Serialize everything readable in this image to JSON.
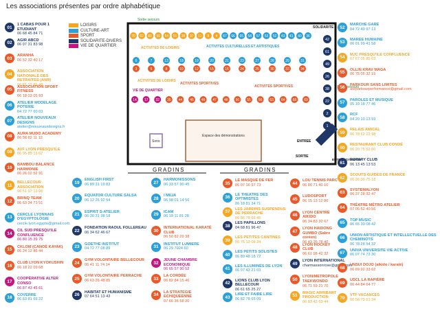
{
  "title": "Les associations présentes par ordre alphabétique",
  "legend": [
    {
      "label": "LOISIRS",
      "color": "#f5a623"
    },
    {
      "label": "CULTURE-ART",
      "color": "#2a9fd8"
    },
    {
      "label": "SPORT",
      "color": "#e85a2a"
    },
    {
      "label": "SOLIDARITE-DIVERS",
      "color": "#1f3767"
    },
    {
      "label": "VIE DE QUARTIER",
      "color": "#c2177e"
    }
  ],
  "entries": [
    {
      "num": "01",
      "name": "1 CABAS POUR 1 ETUDIANT",
      "info": "06 68 45 84 71",
      "color": "#1f3767"
    },
    {
      "num": "02",
      "name": "AGIR ABCD",
      "info": "06 07 31 83 98",
      "color": "#1f3767"
    },
    {
      "num": "03",
      "name": "ARANHA",
      "info": "06 52 32 40 17",
      "color": "#e85a2a"
    },
    {
      "num": "04",
      "name": "ASSOCIATION NATIONALE DES RETRAITES (ANR)",
      "info": "06 81 12 85 48",
      "color": "#f5a623"
    },
    {
      "num": "05",
      "name": "ASSOCIATION SPORT FITNESS",
      "info": "06 18 03 05 93",
      "color": "#e85a2a"
    },
    {
      "num": "06",
      "name": "ATELIER MODELAGE POTERIE",
      "info": "04 72 77 60 03",
      "color": "#2a9fd8"
    },
    {
      "num": "07",
      "name": "ATELIER NOUVEAUX DESIGNS",
      "info": "atelier@nouveauxdesigns.fr",
      "color": "#2a9fd8"
    },
    {
      "num": "08",
      "name": "AURA MUDO ACADEMY",
      "info": "06 58 82 11 12",
      "color": "#e85a2a"
    },
    {
      "num": "09",
      "name": "AVF LYON PRESQU'ILE",
      "info": "06 95 85 19 67",
      "color": "#f5a623"
    },
    {
      "num": "10",
      "name": "BAMBOU BALANCE HARMONIE",
      "info": "06 26 02 52 91",
      "color": "#e85a2a"
    },
    {
      "num": "11",
      "name": "BELLECOUR ASSOCIATION",
      "info": "06 51 97 13 06",
      "color": "#f5a623"
    },
    {
      "num": "12",
      "name": "BRINQ TEAM",
      "info": "06 63 34 73 51",
      "color": "#e85a2a"
    },
    {
      "num": "13",
      "name": "CERCLE LYONNAIS D'EGYPTOLOGIE",
      "info": "cercle.lyon.egypto@gmail.com",
      "color": "#2a9fd8"
    },
    {
      "num": "14",
      "name": "CIL SUD PRESQU'ILE CONFLUENCE",
      "info": "06 80 15 39 75",
      "color": "#c2177e"
    },
    {
      "num": "15",
      "name": "CKLOM (CANOË KAYAK)",
      "info": "06 24 12 86 44",
      "color": "#e85a2a"
    },
    {
      "num": "16",
      "name": "CLUB LYON KYOKUSHIN",
      "info": "06 18 22 09 68",
      "color": "#e85a2a"
    },
    {
      "num": "17",
      "name": "COOPÉRATIVE ALTER CONSO",
      "info": "06 87 43 45 61",
      "color": "#c2177e"
    },
    {
      "num": "18",
      "name": "COVERRE",
      "info": "06 63 81 66 22",
      "color": "#2a9fd8"
    },
    {
      "num": "19",
      "name": "ENGLISH FIRST",
      "info": "06 89 31 19 83",
      "color": "#2a9fd8"
    },
    {
      "num": "20",
      "name": "EQUATOR CULTURE SALSA",
      "info": "06 12 26 92 54",
      "color": "#2a9fd8"
    },
    {
      "num": "21",
      "name": "ESPRIT S-ATELIER",
      "info": "06 20 31 38 18",
      "color": "#2a9fd8"
    },
    {
      "num": "22",
      "name": "FONDATION RAOUL FOLLEREAU",
      "info": "06 34 62 46 67",
      "color": "#1f3767"
    },
    {
      "num": "23",
      "name": "GOETHE INSTITUT",
      "info": "04 72 77 08 89",
      "color": "#2a9fd8"
    },
    {
      "num": "24",
      "name": "GYM VOLONTAIRE BELLECOUR",
      "info": "06 41 11 74 14",
      "color": "#e85a2a"
    },
    {
      "num": "25",
      "name": "GYM VOLONTAIRE PERRACHE",
      "info": "06 63 26 48 85",
      "color": "#e85a2a"
    },
    {
      "num": "26",
      "name": "HABITAT ET HUMANISME",
      "info": "07 64 51 13 43",
      "color": "#1f3767"
    },
    {
      "num": "27",
      "name": "HARMONISSONS",
      "info": "06 33 57 90 45",
      "color": "#2a9fd8"
    },
    {
      "num": "28",
      "name": "I MILIA",
      "info": "06 98 01 14 56",
      "color": "#2a9fd8"
    },
    {
      "num": "29",
      "name": "ICAM",
      "info": "06 18 11 81 28",
      "color": "#2a9fd8"
    },
    {
      "num": "30",
      "name": "INTERNATIONAL KARATÉ CLUB",
      "info": "06 50 82 29 38",
      "color": "#e85a2a"
    },
    {
      "num": "31",
      "name": "INSTITUT LUMIERE",
      "info": "06 29 7024 60",
      "color": "#2a9fd8"
    },
    {
      "num": "32",
      "name": "JEUNE CHAMBRE ECONOMIQUE",
      "info": "06 65 57 90 52",
      "color": "#c2177e"
    },
    {
      "num": "33",
      "name": "LA CORDÉE",
      "info": "06 82 84 15 46",
      "color": "#e85a2a"
    },
    {
      "num": "34",
      "name": "LA STRATEGIE ECHIQUEENNE",
      "info": "07 66 36 58 20",
      "color": "#e85a2a"
    },
    {
      "num": "35",
      "name": "LE MASQUE DE FER",
      "info": "06 07 16 97 73",
      "color": "#e85a2a"
    },
    {
      "num": "36",
      "name": "LE THEATRE DES OPTIMISTES",
      "info": "06 18 81 34 71",
      "color": "#2a9fd8"
    },
    {
      "num": "37",
      "name": "LES JARDINS SUSPENDUS DE PERRACHE",
      "info": "06 86 78 66 45",
      "color": "#f5a623"
    },
    {
      "num": "38",
      "name": "LES PAPILLONS",
      "info": "04 68 81 96 47",
      "color": "#1f3767"
    },
    {
      "num": "39",
      "name": "LES PETITES CANTINES",
      "info": "06 75 19 08 34",
      "color": "#f5a623"
    },
    {
      "num": "40",
      "name": "LES PETITS SOLISTES",
      "info": "06 89 48 18 72",
      "color": "#2a9fd8"
    },
    {
      "num": "41",
      "name": "LES ILLUMINÉS DE LYON",
      "info": "06 07 43 21 03",
      "color": "#2a9fd8"
    },
    {
      "num": "42",
      "name": "LIONS CLUB LYON BELLECOUR",
      "info": "06 61 65 25 27",
      "color": "#1f3767"
    },
    {
      "num": "43",
      "name": "LIRE ET FAIRE LIRE",
      "info": "06 82 78 65 09",
      "color": "#2a9fd8"
    },
    {
      "num": "44",
      "name": "LOU TENNIS PARC",
      "info": "06 80 71 40 10",
      "color": "#e85a2a"
    },
    {
      "num": "45",
      "name": "LUDOSPORT",
      "info": "06 15 13 12 86",
      "color": "#e85a2a"
    },
    {
      "num": "46",
      "name": "LYON CENTRE AIKIDO",
      "info": "06 34 83 32 67",
      "color": "#e85a2a"
    },
    {
      "num": "47",
      "name": "LYON HAIDONG GUMBO (Sabre coréen)",
      "info": "06 43 35 78 40",
      "color": "#e85a2a"
    },
    {
      "num": "48",
      "name": "LYON HOCKEY CLUB",
      "info": "06 61 98 42 32",
      "color": "#e85a2a"
    },
    {
      "num": "49",
      "name": "LYON INTERNATIONAL",
      "info": "charmassonrose@gmail.com",
      "color": "#1f3767"
    },
    {
      "num": "50",
      "name": "LYON/METROPOLE TAEKWONDO",
      "info": "06 71 59 21 70",
      "color": "#e85a2a"
    },
    {
      "num": "51",
      "name": "MAGIC ARRIBART PRODUCTION",
      "info": "06 83 42 63 44",
      "color": "#f5a623"
    },
    {
      "num": "52",
      "name": "MARCHE GARE",
      "info": "04 72 40 97 13",
      "color": "#2a9fd8"
    },
    {
      "num": "53",
      "name": "MAREE HUMAINE",
      "info": "06 01 99 41 58",
      "color": "#2a9fd8"
    },
    {
      "num": "54",
      "name": "MJC PRESQU'ILE CONFLUENCE",
      "info": "07 67 05 85 63",
      "color": "#f5a623"
    },
    {
      "num": "55",
      "name": "OLLIN KRAV MAGA",
      "info": "06 75 05 32 15",
      "color": "#e85a2a"
    },
    {
      "num": "56",
      "name": "PARKOUR SANS LIMITES",
      "info": "aurparkourperformance@gmail.com",
      "color": "#e85a2a"
    },
    {
      "num": "57",
      "name": "PAROLES ET MUSIQUE",
      "info": "05 10 18 77 46",
      "color": "#2a9fd8"
    },
    {
      "num": "58",
      "name": "RCF",
      "info": "04 20 10 13 93",
      "color": "#2a9fd8"
    },
    {
      "num": "59",
      "name": "RELAIS AMICAL",
      "info": "06 78 62 22 98",
      "color": "#f5a623"
    },
    {
      "num": "60",
      "name": "RESTAURANT CLUB CONDÉ",
      "info": "06 20 75 53 00",
      "color": "#f5a623"
    },
    {
      "num": "61",
      "name": "ROTARY CLUB",
      "info": "06 13 45 13 53",
      "color": "#1f3767"
    },
    {
      "num": "62",
      "name": "SCOUTS GUIDES DE FRANCE",
      "info": "06 26 00 75 18",
      "color": "#f5a623"
    },
    {
      "num": "63",
      "name": "SYSTEMALYON",
      "info": "06 37 28 32 47",
      "color": "#e85a2a"
    },
    {
      "num": "64",
      "name": "THÉATRE MÉTRO ATELIER",
      "info": "07 05 52 40 56",
      "color": "#e85a2a"
    },
    {
      "num": "65",
      "name": "TOP MUSIC",
      "info": "06 65 30 08 42",
      "color": "#2a9fd8"
    },
    {
      "num": "66",
      "name": "UNION ARTISTIQUE ET INTELLECTUELLE DES CHEMINOTS",
      "info": "06 78 28 54 32",
      "color": "#2a9fd8"
    },
    {
      "num": "67",
      "name": "UNIVA UNIVERSITE VIE ACTIVE",
      "info": "06 07 74 73 30",
      "color": "#2a9fd8"
    },
    {
      "num": "68",
      "name": "UNSUI DOJO (aïkido / karaté)",
      "info": "06 69 92 33 62",
      "color": "#e85a2a"
    },
    {
      "num": "69",
      "name": "USCL LA RAPIÈRE",
      "info": "06 44 84 64 77",
      "color": "#e85a2a"
    },
    {
      "num": "70",
      "name": "VTF VACANCES",
      "info": "06 58 73 51 34",
      "color": "#f5a623"
    }
  ],
  "plan": {
    "exit_top": "Sortie secours",
    "solidarity": "SOLIDARITE",
    "leisure_1": "ACTIVITES DE LOISIRS",
    "culture": "ACTIVITES CULTURELLES ET ARTISTIQUES",
    "leisure_2": "ACTIVITES DE LOISIRS",
    "neighbourhood": "VIE DE QUARTIER",
    "sport_1": "ACTIVITES SPORTIVES",
    "sport_2": "ACTIVITES SPORTIVES",
    "exit_right": "Sortie secours",
    "sound": "Sono",
    "demo": "Espace des démonstrations",
    "entrance": "ENTREE",
    "exit": "SORTIE",
    "gym_entrance": "ENTREE GYMNASE",
    "stands_left": "GRADINS",
    "stands_right": "GRADINS",
    "row_a": [
      70,
      62,
      60,
      59,
      54,
      51,
      39,
      37,
      11,
      9,
      4,
      67,
      66,
      65,
      58,
      57,
      53,
      52,
      43,
      41,
      40,
      36
    ],
    "row_b": [
      6,
      7,
      13,
      18,
      19,
      20,
      21,
      23,
      27,
      28,
      29,
      31
    ],
    "row_c": [
      3,
      5,
      8,
      10,
      12,
      15,
      16,
      24,
      25,
      30,
      33,
      34
    ],
    "row_d": [
      14,
      17,
      32,
      35,
      44,
      45,
      46,
      47,
      48,
      50,
      55,
      56,
      63,
      64,
      68,
      69
    ],
    "column": [
      42,
      61,
      49,
      26,
      38,
      22,
      2,
      1
    ]
  }
}
